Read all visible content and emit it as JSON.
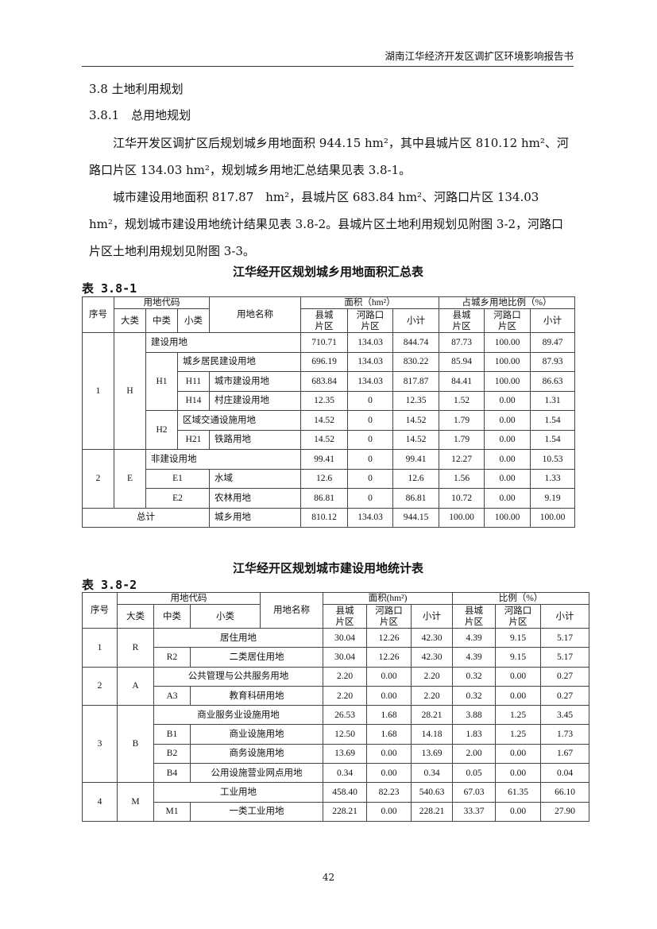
{
  "running_header": "湖南江华经济开发区调扩区环境影响报告书",
  "section": {
    "title": "3.8 土地利用规划",
    "subsection": "3.8.1　总用地规划"
  },
  "paragraphs": [
    "江华开发区调扩区后规划城乡用地面积 944.15 hm²，其中县城片区 810.12 hm²、河路口片区 134.03 hm²，规划城乡用地汇总结果见表 3.8-1。",
    "城市建设用地面积 817.87　hm²，县城片区 683.84 hm²、河路口片区 134.03 hm²，规划城市建设用地统计结果见表 3.8-2。县城片区土地利用规划见附图 3-2，河路口片区土地利用规划见附图 3-3。"
  ],
  "table1": {
    "caption": "江华经开区规划城乡用地面积汇总表",
    "number": "表 3.8-1",
    "headers": {
      "seq": "序号",
      "code": "用地代码",
      "major": "大类",
      "mid": "中类",
      "minor": "小类",
      "name": "用地名称",
      "area": "面积（hm²）",
      "ratio": "占城乡用地比例（%）",
      "county": [
        "县城",
        "片区"
      ],
      "helukou": [
        "河路口",
        "片区"
      ],
      "subtotal": "小计"
    },
    "rows": [
      {
        "seq": "1",
        "major": "H",
        "name": "建设用地",
        "values": [
          "710.71",
          "134.03",
          "844.74",
          "87.73",
          "100.00",
          "89.47"
        ]
      },
      {
        "mid": "H1",
        "name": "城乡居民建设用地",
        "values": [
          "696.19",
          "134.03",
          "830.22",
          "85.94",
          "100.00",
          "87.93"
        ]
      },
      {
        "minor": "H11",
        "name": "城市建设用地",
        "values": [
          "683.84",
          "134.03",
          "817.87",
          "84.41",
          "100.00",
          "86.63"
        ]
      },
      {
        "minor": "H14",
        "name": "村庄建设用地",
        "values": [
          "12.35",
          "0",
          "12.35",
          "1.52",
          "0.00",
          "1.31"
        ]
      },
      {
        "mid": "H2",
        "name": "区域交通设施用地",
        "values": [
          "14.52",
          "0",
          "14.52",
          "1.79",
          "0.00",
          "1.54"
        ]
      },
      {
        "minor": "H21",
        "name": "铁路用地",
        "values": [
          "14.52",
          "0",
          "14.52",
          "1.79",
          "0.00",
          "1.54"
        ]
      },
      {
        "seq": "2",
        "major": "E",
        "name": "非建设用地",
        "values": [
          "99.41",
          "0",
          "99.41",
          "12.27",
          "0.00",
          "10.53"
        ]
      },
      {
        "mid": "E1",
        "name": "水域",
        "values": [
          "12.6",
          "0",
          "12.6",
          "1.56",
          "0.00",
          "1.33"
        ]
      },
      {
        "mid": "E2",
        "name": "农林用地",
        "values": [
          "86.81",
          "0",
          "86.81",
          "10.72",
          "0.00",
          "9.19"
        ]
      },
      {
        "seq": "总计",
        "name": "城乡用地",
        "values": [
          "810.12",
          "134.03",
          "944.15",
          "100.00",
          "100.00",
          "100.00"
        ]
      }
    ]
  },
  "table2": {
    "caption": "江华经开区规划城市建设用地统计表",
    "number": "表 3.8-2",
    "headers": {
      "seq": "序号",
      "code": "用地代码",
      "major": "大类",
      "mid": "中类",
      "minor": "小类",
      "name": "用地名称",
      "area": "面积(hm²)",
      "ratio": "比例（%）",
      "county": [
        "县城",
        "片区"
      ],
      "helukou": [
        "河路口",
        "片区"
      ],
      "subtotal": "小计"
    },
    "rows": [
      {
        "seq": "1",
        "major": "R",
        "name": "居住用地",
        "values": [
          "30.04",
          "12.26",
          "42.30",
          "4.39",
          "9.15",
          "5.17"
        ]
      },
      {
        "mid": "R2",
        "name": "二类居住用地",
        "values": [
          "30.04",
          "12.26",
          "42.30",
          "4.39",
          "9.15",
          "5.17"
        ]
      },
      {
        "seq": "2",
        "major": "A",
        "name": "公共管理与公共服务用地",
        "values": [
          "2.20",
          "0.00",
          "2.20",
          "0.32",
          "0.00",
          "0.27"
        ]
      },
      {
        "mid": "A3",
        "name": "教育科研用地",
        "values": [
          "2.20",
          "0.00",
          "2.20",
          "0.32",
          "0.00",
          "0.27"
        ]
      },
      {
        "seq": "3",
        "major": "B",
        "name": "商业服务业设施用地",
        "values": [
          "26.53",
          "1.68",
          "28.21",
          "3.88",
          "1.25",
          "3.45"
        ]
      },
      {
        "mid": "B1",
        "name": "商业设施用地",
        "values": [
          "12.50",
          "1.68",
          "14.18",
          "1.83",
          "1.25",
          "1.73"
        ]
      },
      {
        "mid": "B2",
        "name": "商务设施用地",
        "values": [
          "13.69",
          "0.00",
          "13.69",
          "2.00",
          "0.00",
          "1.67"
        ]
      },
      {
        "mid": "B4",
        "name": "公用设施营业网点用地",
        "values": [
          "0.34",
          "0.00",
          "0.34",
          "0.05",
          "0.00",
          "0.04"
        ]
      },
      {
        "seq": "4",
        "major": "M",
        "name": "工业用地",
        "values": [
          "458.40",
          "82.23",
          "540.63",
          "67.03",
          "61.35",
          "66.10"
        ]
      },
      {
        "mid": "M1",
        "name": "一类工业用地",
        "values": [
          "228.21",
          "0.00",
          "228.21",
          "33.37",
          "0.00",
          "27.90"
        ]
      }
    ]
  },
  "page_number": "42"
}
